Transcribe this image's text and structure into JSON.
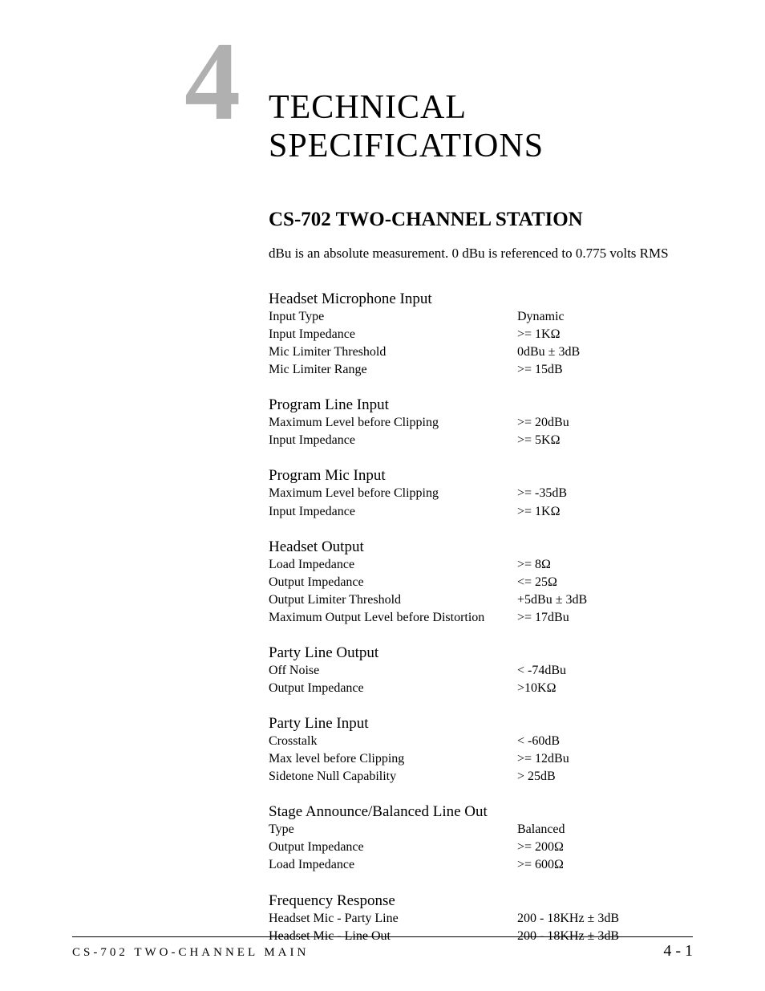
{
  "chapter": {
    "number": "4",
    "title_line1": "TECHNICAL",
    "title_line2": "SPECIFICATIONS"
  },
  "subtitle": "CS-702 TWO-CHANNEL STATION",
  "note": "dBu is an absolute measurement.  0 dBu is referenced to 0.775 volts RMS",
  "sections": [
    {
      "heading": "Headset Microphone Input",
      "rows": [
        {
          "label": "Input Type",
          "value": "Dynamic"
        },
        {
          "label": "Input Impedance",
          "value": ">= 1KΩ"
        },
        {
          "label": "Mic Limiter Threshold",
          "value": "0dBu ± 3dB"
        },
        {
          "label": "Mic Limiter Range",
          "value": ">= 15dB"
        }
      ]
    },
    {
      "heading": "Program Line Input",
      "rows": [
        {
          "label": "Maximum Level before Clipping",
          "value": ">= 20dBu"
        },
        {
          "label": "Input Impedance",
          "value": ">= 5KΩ"
        }
      ]
    },
    {
      "heading": "Program Mic Input",
      "rows": [
        {
          "label": "Maximum Level before Clipping",
          "value": ">= -35dB"
        },
        {
          "label": "Input Impedance",
          "value": ">= 1KΩ"
        }
      ]
    },
    {
      "heading": "Headset Output",
      "rows": [
        {
          "label": "Load Impedance",
          "value": ">= 8Ω"
        },
        {
          "label": "Output Impedance",
          "value": "<= 25Ω"
        },
        {
          "label": "Output Limiter Threshold",
          "value": "+5dBu ± 3dB"
        },
        {
          "label": "Maximum Output Level before Distortion",
          "value": ">= 17dBu"
        }
      ]
    },
    {
      "heading": "Party Line Output",
      "rows": [
        {
          "label": "Off Noise",
          "value": "< -74dBu"
        },
        {
          "label": "Output Impedance",
          "value": ">10KΩ"
        }
      ]
    },
    {
      "heading": "Party Line Input",
      "rows": [
        {
          "label": "Crosstalk",
          "value": "< -60dB"
        },
        {
          "label": "Max level before Clipping",
          "value": ">= 12dBu"
        },
        {
          "label": "Sidetone Null Capability",
          "value": "> 25dB"
        }
      ]
    },
    {
      "heading": "Stage Announce/Balanced Line Out",
      "rows": [
        {
          "label": "Type",
          "value": "Balanced"
        },
        {
          "label": "Output Impedance",
          "value": ">= 200Ω"
        },
        {
          "label": "Load Impedance",
          "value": ">= 600Ω"
        }
      ]
    },
    {
      "heading": "Frequency Response",
      "rows": [
        {
          "label": "Headset Mic - Party Line",
          "value": "200 - 18KHz ± 3dB"
        },
        {
          "label": "Headset Mic - Line Out",
          "value": "200 - 18KHz ± 3dB"
        }
      ]
    }
  ],
  "footer": {
    "left": "CS-702 TWO-CHANNEL MAIN",
    "right": "4 - 1"
  }
}
